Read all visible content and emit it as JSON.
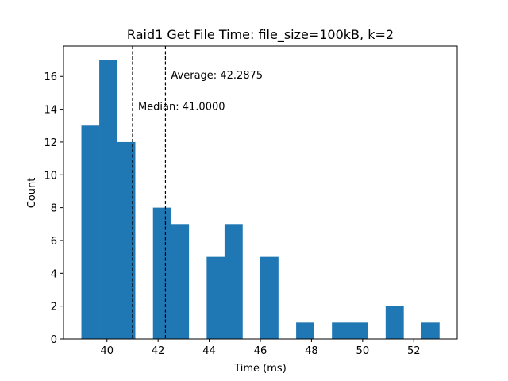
{
  "chart_data": {
    "type": "bar",
    "title": "Raid1 Get File Time: file_size=100kB, k=2",
    "xlabel": "Time (ms)",
    "ylabel": "Count",
    "xlim": [
      38.3,
      53.7
    ],
    "ylim": [
      0,
      17.85
    ],
    "xticks": [
      40,
      42,
      44,
      46,
      48,
      50,
      52
    ],
    "yticks": [
      0,
      2,
      4,
      6,
      8,
      10,
      12,
      14,
      16
    ],
    "bar_color": "#1f77b4",
    "bins": [
      {
        "start": 39.0,
        "end": 39.7,
        "count": 13
      },
      {
        "start": 39.7,
        "end": 40.4,
        "count": 17
      },
      {
        "start": 40.4,
        "end": 41.1,
        "count": 12
      },
      {
        "start": 41.1,
        "end": 41.8,
        "count": 0
      },
      {
        "start": 41.8,
        "end": 42.5,
        "count": 8
      },
      {
        "start": 42.5,
        "end": 43.2,
        "count": 7
      },
      {
        "start": 43.2,
        "end": 43.9,
        "count": 0
      },
      {
        "start": 43.9,
        "end": 44.6,
        "count": 5
      },
      {
        "start": 44.6,
        "end": 45.3,
        "count": 7
      },
      {
        "start": 45.3,
        "end": 46.0,
        "count": 0
      },
      {
        "start": 46.0,
        "end": 46.7,
        "count": 5
      },
      {
        "start": 46.7,
        "end": 47.4,
        "count": 0
      },
      {
        "start": 47.4,
        "end": 48.1,
        "count": 1
      },
      {
        "start": 48.1,
        "end": 48.8,
        "count": 0
      },
      {
        "start": 48.8,
        "end": 49.5,
        "count": 1
      },
      {
        "start": 49.5,
        "end": 50.2,
        "count": 1
      },
      {
        "start": 50.2,
        "end": 50.9,
        "count": 0
      },
      {
        "start": 50.9,
        "end": 51.6,
        "count": 2
      },
      {
        "start": 51.6,
        "end": 52.3,
        "count": 0
      },
      {
        "start": 52.3,
        "end": 53.0,
        "count": 1
      }
    ],
    "vlines": [
      {
        "label": "Median: 41.0000",
        "x": 41.0
      },
      {
        "label": "Average: 42.2875",
        "x": 42.2875
      }
    ]
  }
}
